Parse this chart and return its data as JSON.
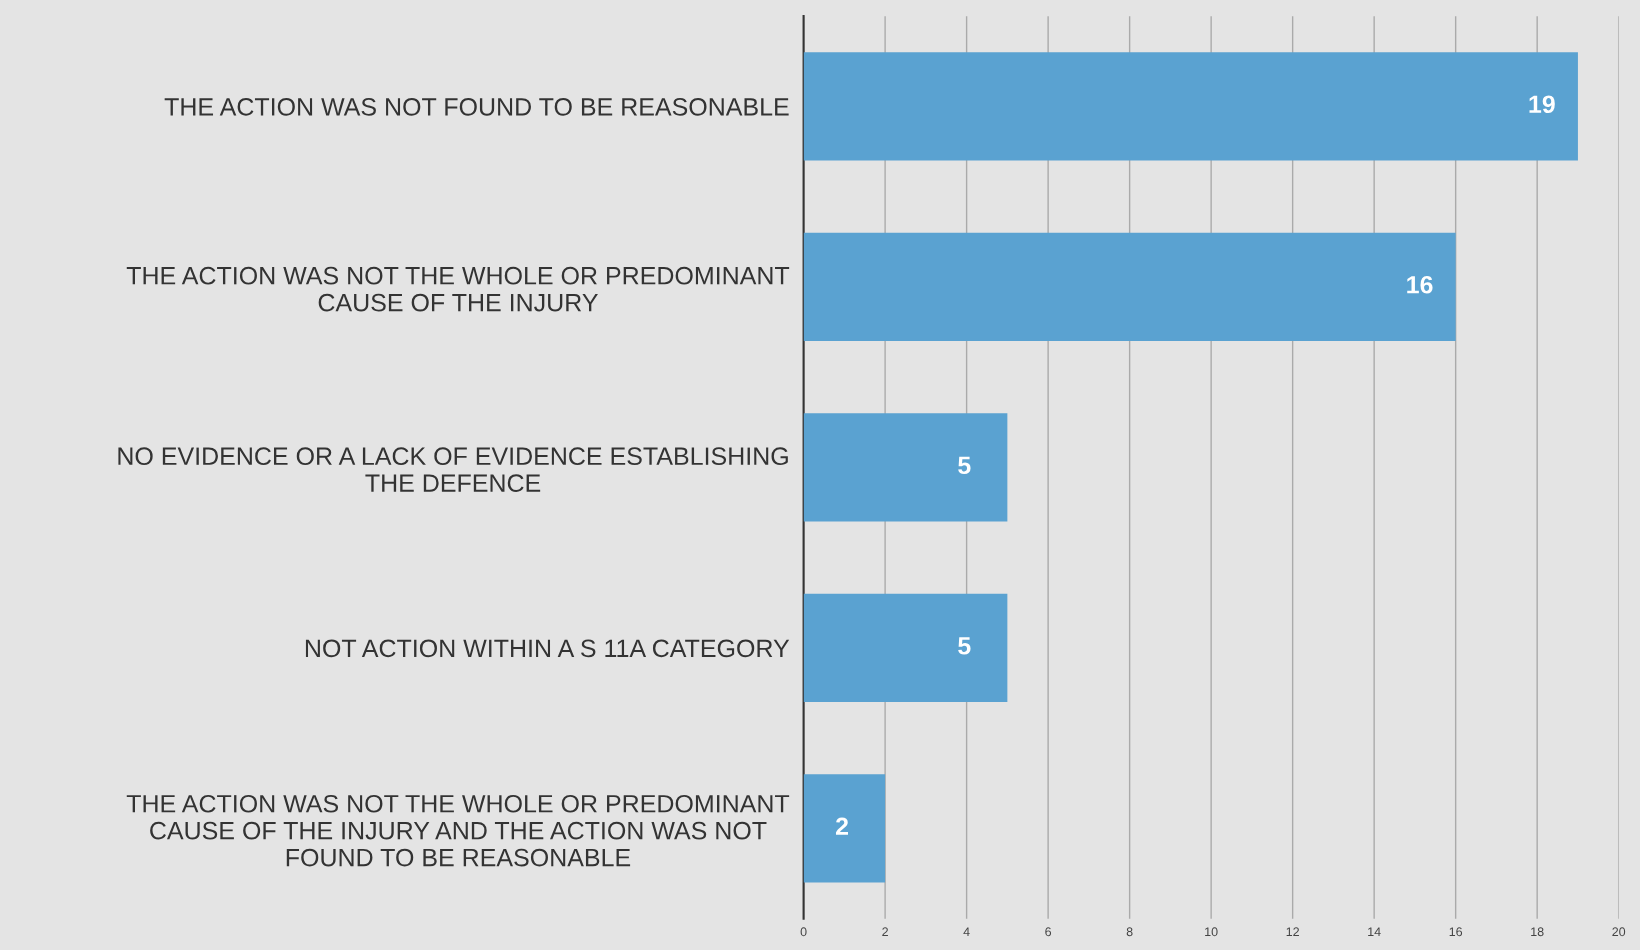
{
  "chart_data": {
    "type": "bar",
    "orientation": "horizontal",
    "categories": [
      "THE ACTION WAS NOT FOUND TO BE REASONABLE",
      "THE ACTION WAS NOT THE WHOLE OR PREDOMINANT CAUSE OF THE INJURY",
      "NO EVIDENCE OR A LACK OF EVIDENCE ESTABLISHING THE DEFENCE",
      "NOT ACTION WITHIN A S 11A CATEGORY",
      "THE ACTION WAS NOT THE WHOLE OR PREDOMINANT CAUSE OF THE INJURY AND THE ACTION WAS NOT FOUND TO BE REASONABLE"
    ],
    "values": [
      19,
      16,
      5,
      5,
      2
    ],
    "color": "#5aa2d1",
    "xlim": [
      0,
      20
    ],
    "xticks": [
      0,
      2,
      4,
      6,
      8,
      10,
      12,
      14,
      16,
      18,
      20
    ],
    "grid": "x",
    "data_labels": true
  }
}
